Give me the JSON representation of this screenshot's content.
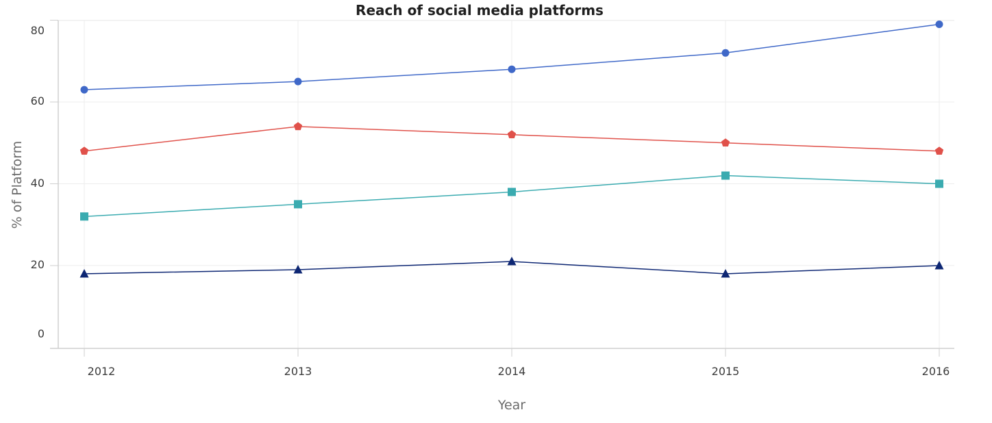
{
  "chart_data": {
    "type": "line",
    "title": "Reach of social media platforms",
    "xlabel": "Year",
    "ylabel": "% of Platform",
    "categories": [
      "2012",
      "2013",
      "2014",
      "2015",
      "2016"
    ],
    "y_ticks": [
      "0",
      "20",
      "40",
      "60",
      "80"
    ],
    "ylim": [
      0,
      80
    ],
    "grid": true,
    "legend": "none",
    "series": [
      {
        "values": [
          63,
          65,
          68,
          72,
          79
        ],
        "color": "#3f68c8",
        "marker": "circle"
      },
      {
        "values": [
          48,
          54,
          52,
          50,
          48
        ],
        "color": "#e0514a",
        "marker": "pentagon"
      },
      {
        "values": [
          32,
          35,
          38,
          42,
          40
        ],
        "color": "#3aabb0",
        "marker": "square"
      },
      {
        "values": [
          18,
          19,
          21,
          18,
          20
        ],
        "color": "#0d2673",
        "marker": "triangle"
      }
    ]
  }
}
